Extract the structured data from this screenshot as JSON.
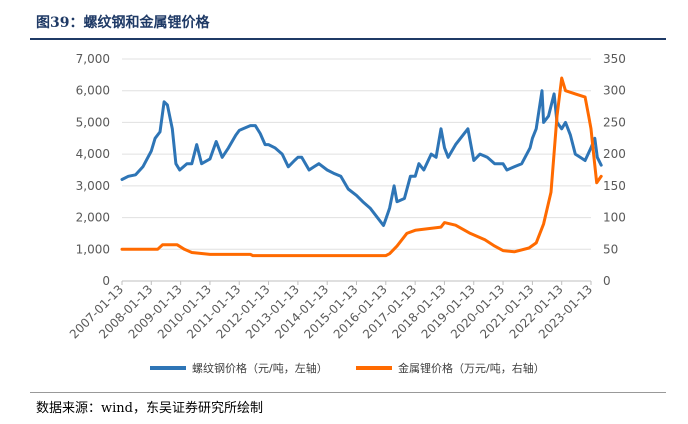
{
  "figure": {
    "title": "图39：螺纹钢和金属锂价格",
    "source": "数据来源：wind，东吴证券研究所绘制"
  },
  "chart_data": {
    "type": "line",
    "x_ticks": [
      "2007-01-13",
      "2008-01-13",
      "2009-01-13",
      "2010-01-13",
      "2011-01-13",
      "2012-01-13",
      "2013-01-13",
      "2014-01-13",
      "2015-01-13",
      "2016-01-13",
      "2017-01-13",
      "2018-01-13",
      "2019-01-13",
      "2020-01-13",
      "2021-01-13",
      "2022-01-13",
      "2023-01-13"
    ],
    "y_left": {
      "ticks": [
        "0",
        "1,000",
        "2,000",
        "3,000",
        "4,000",
        "5,000",
        "6,000",
        "7,000"
      ],
      "lim": [
        0,
        7000
      ]
    },
    "y_right": {
      "ticks": [
        "0",
        "50",
        "100",
        "150",
        "200",
        "250",
        "300",
        "350"
      ],
      "lim": [
        0,
        350
      ]
    },
    "legend_position": "bottom",
    "series": [
      {
        "name": "螺纹钢价格（元/吨，左轴）",
        "axis": "left",
        "color": "#2e75b6",
        "points": [
          [
            "2007-01-13",
            3200
          ],
          [
            "2007-04-01",
            3300
          ],
          [
            "2007-07-01",
            3350
          ],
          [
            "2007-10-01",
            3600
          ],
          [
            "2008-01-13",
            4100
          ],
          [
            "2008-03-01",
            4500
          ],
          [
            "2008-05-01",
            4700
          ],
          [
            "2008-06-20",
            5650
          ],
          [
            "2008-08-01",
            5550
          ],
          [
            "2008-10-01",
            4800
          ],
          [
            "2008-11-15",
            3700
          ],
          [
            "2009-01-01",
            3500
          ],
          [
            "2009-04-01",
            3700
          ],
          [
            "2009-06-01",
            3700
          ],
          [
            "2009-08-01",
            4300
          ],
          [
            "2009-10-01",
            3700
          ],
          [
            "2010-01-13",
            3850
          ],
          [
            "2010-04-01",
            4400
          ],
          [
            "2010-06-15",
            3900
          ],
          [
            "2010-09-01",
            4200
          ],
          [
            "2010-12-01",
            4600
          ],
          [
            "2011-01-13",
            4750
          ],
          [
            "2011-03-01",
            4800
          ],
          [
            "2011-06-01",
            4900
          ],
          [
            "2011-08-01",
            4900
          ],
          [
            "2011-10-01",
            4650
          ],
          [
            "2011-12-01",
            4300
          ],
          [
            "2012-01-13",
            4300
          ],
          [
            "2012-04-01",
            4200
          ],
          [
            "2012-07-01",
            4000
          ],
          [
            "2012-09-15",
            3600
          ],
          [
            "2012-12-01",
            3800
          ],
          [
            "2013-01-13",
            3900
          ],
          [
            "2013-03-01",
            3900
          ],
          [
            "2013-06-01",
            3500
          ],
          [
            "2013-08-01",
            3600
          ],
          [
            "2013-10-01",
            3700
          ],
          [
            "2014-01-13",
            3500
          ],
          [
            "2014-04-01",
            3400
          ],
          [
            "2014-07-01",
            3300
          ],
          [
            "2014-10-01",
            2900
          ],
          [
            "2015-01-13",
            2700
          ],
          [
            "2015-04-01",
            2500
          ],
          [
            "2015-07-01",
            2300
          ],
          [
            "2015-10-01",
            2000
          ],
          [
            "2015-12-15",
            1750
          ],
          [
            "2016-01-13",
            1950
          ],
          [
            "2016-03-01",
            2300
          ],
          [
            "2016-04-25",
            3000
          ],
          [
            "2016-06-01",
            2500
          ],
          [
            "2016-09-01",
            2600
          ],
          [
            "2016-11-15",
            3300
          ],
          [
            "2017-01-13",
            3300
          ],
          [
            "2017-03-01",
            3700
          ],
          [
            "2017-05-01",
            3500
          ],
          [
            "2017-08-01",
            4000
          ],
          [
            "2017-10-01",
            3900
          ],
          [
            "2017-12-01",
            4800
          ],
          [
            "2018-01-13",
            4200
          ],
          [
            "2018-03-01",
            3900
          ],
          [
            "2018-06-01",
            4300
          ],
          [
            "2018-09-01",
            4600
          ],
          [
            "2018-11-01",
            4800
          ],
          [
            "2019-01-13",
            3800
          ],
          [
            "2019-04-01",
            4000
          ],
          [
            "2019-07-01",
            3900
          ],
          [
            "2019-10-01",
            3700
          ],
          [
            "2020-01-13",
            3700
          ],
          [
            "2020-03-01",
            3500
          ],
          [
            "2020-06-01",
            3600
          ],
          [
            "2020-09-01",
            3700
          ],
          [
            "2020-12-15",
            4200
          ],
          [
            "2021-01-13",
            4500
          ],
          [
            "2021-03-01",
            4800
          ],
          [
            "2021-05-12",
            6000
          ],
          [
            "2021-06-01",
            5000
          ],
          [
            "2021-08-01",
            5200
          ],
          [
            "2021-10-10",
            5900
          ],
          [
            "2021-11-15",
            5000
          ],
          [
            "2022-01-13",
            4800
          ],
          [
            "2022-03-01",
            5000
          ],
          [
            "2022-05-01",
            4600
          ],
          [
            "2022-07-01",
            4000
          ],
          [
            "2022-09-01",
            3900
          ],
          [
            "2022-11-01",
            3800
          ],
          [
            "2023-01-13",
            4200
          ],
          [
            "2023-03-01",
            4500
          ],
          [
            "2023-04-01",
            3900
          ],
          [
            "2023-05-20",
            3650
          ]
        ]
      },
      {
        "name": "金属锂价格（万元/吨，右轴）",
        "axis": "right",
        "color": "#ff6a00",
        "points": [
          [
            "2007-01-13",
            50
          ],
          [
            "2008-04-01",
            50
          ],
          [
            "2008-06-01",
            57
          ],
          [
            "2008-12-01",
            57
          ],
          [
            "2009-03-01",
            50
          ],
          [
            "2009-06-01",
            45
          ],
          [
            "2010-01-13",
            42
          ],
          [
            "2011-06-01",
            42
          ],
          [
            "2011-07-01",
            40
          ],
          [
            "2015-06-01",
            40
          ],
          [
            "2016-01-13",
            40
          ],
          [
            "2016-03-01",
            43
          ],
          [
            "2016-06-01",
            55
          ],
          [
            "2016-10-01",
            75
          ],
          [
            "2017-01-13",
            80
          ],
          [
            "2017-12-01",
            85
          ],
          [
            "2018-01-13",
            92
          ],
          [
            "2018-06-01",
            88
          ],
          [
            "2018-12-01",
            75
          ],
          [
            "2019-06-01",
            65
          ],
          [
            "2019-10-01",
            55
          ],
          [
            "2020-01-13",
            48
          ],
          [
            "2020-06-01",
            46
          ],
          [
            "2020-12-01",
            52
          ],
          [
            "2021-03-01",
            60
          ],
          [
            "2021-06-01",
            90
          ],
          [
            "2021-09-01",
            140
          ],
          [
            "2021-11-15",
            260
          ],
          [
            "2022-01-13",
            320
          ],
          [
            "2022-03-01",
            300
          ],
          [
            "2022-07-01",
            295
          ],
          [
            "2022-11-01",
            290
          ],
          [
            "2022-12-15",
            260
          ],
          [
            "2023-01-13",
            240
          ],
          [
            "2023-02-15",
            200
          ],
          [
            "2023-03-25",
            155
          ],
          [
            "2023-05-20",
            165
          ]
        ]
      }
    ]
  }
}
